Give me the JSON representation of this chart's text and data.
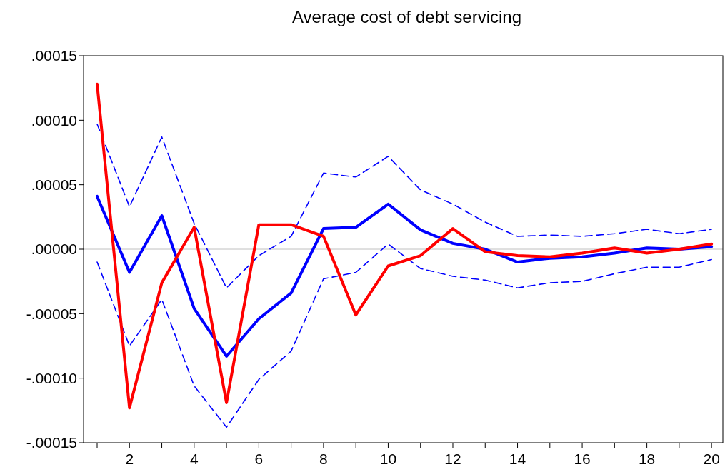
{
  "chart_data": {
    "type": "line",
    "title": "Average cost of debt servicing",
    "x": [
      1,
      2,
      3,
      4,
      5,
      6,
      7,
      8,
      9,
      10,
      11,
      12,
      13,
      14,
      15,
      16,
      17,
      18,
      19,
      20
    ],
    "series": [
      {
        "color": "#0000ff",
        "line_style": "dashed",
        "values": [
          9.7e-05,
          3.3e-05,
          8.7e-05,
          2e-05,
          -3e-05,
          -5e-06,
          1e-05,
          5.9e-05,
          5.6e-05,
          7.2e-05,
          4.6e-05,
          3.5e-05,
          2.1e-05,
          1e-05,
          1.1e-05,
          1e-05,
          1.2e-05,
          1.55e-05,
          1.2e-05,
          1.55e-05
        ]
      },
      {
        "color": "#0000ff",
        "line_style": "dashed",
        "values": [
          -1e-05,
          -7.5e-05,
          -3.9e-05,
          -0.000106,
          -0.000138,
          -0.000101,
          -7.9e-05,
          -2.3e-05,
          -1.8e-05,
          4e-06,
          -1.5e-05,
          -2.1e-05,
          -2.4e-05,
          -3e-05,
          -2.6e-05,
          -2.5e-05,
          -1.9e-05,
          -1.4e-05,
          -1.4e-05,
          -8e-06
        ]
      },
      {
        "color": "#0000ff",
        "line_style": "solid",
        "values": [
          4.1e-05,
          -1.8e-05,
          2.6e-05,
          -4.6e-05,
          -8.3e-05,
          -5.4e-05,
          -3.4e-05,
          1.6e-05,
          1.7e-05,
          3.5e-05,
          1.5e-05,
          4.5e-06,
          0,
          -1e-05,
          -7e-06,
          -6e-06,
          -3e-06,
          1e-06,
          0,
          2e-06
        ]
      },
      {
        "color": "#ff0000",
        "line_style": "solid",
        "values": [
          0.000128,
          -0.000123,
          -2.6e-05,
          1.7e-05,
          -0.000119,
          1.9e-05,
          1.9e-05,
          1e-05,
          -5.1e-05,
          -1.3e-05,
          -5e-06,
          1.6e-05,
          -2e-06,
          -5e-06,
          -6e-06,
          -3e-06,
          1e-06,
          -3e-06,
          0,
          4e-06
        ]
      }
    ],
    "xlim": [
      0.58,
      20.35
    ],
    "ylim": [
      -0.00015,
      0.00015
    ],
    "xticks": [
      {
        "value": 1,
        "label": null
      },
      2,
      {
        "value": 3,
        "label": null
      },
      4,
      {
        "value": 5,
        "label": null
      },
      6,
      {
        "value": 7,
        "label": null
      },
      8,
      {
        "value": 9,
        "label": null
      },
      10,
      {
        "value": 11,
        "label": null
      },
      12,
      {
        "value": 13,
        "label": null
      },
      14,
      {
        "value": 15,
        "label": null
      },
      16,
      {
        "value": 17,
        "label": null
      },
      18,
      {
        "value": 19,
        "label": null
      },
      20
    ],
    "yticks": [
      {
        "value": -0.00015,
        "label": "-.00015"
      },
      {
        "value": -0.0001,
        "label": "-.00010"
      },
      {
        "value": -5e-05,
        "label": "-.00005"
      },
      {
        "value": 0,
        "label": ".00000"
      },
      {
        "value": 5e-05,
        "label": ".00005"
      },
      {
        "value": 0.0001,
        "label": ".00010"
      },
      {
        "value": 0.00015,
        "label": ".00015"
      }
    ],
    "ref_lines": [
      {
        "axis": "y",
        "value": 0,
        "color": "#c0c0c0"
      }
    ]
  }
}
